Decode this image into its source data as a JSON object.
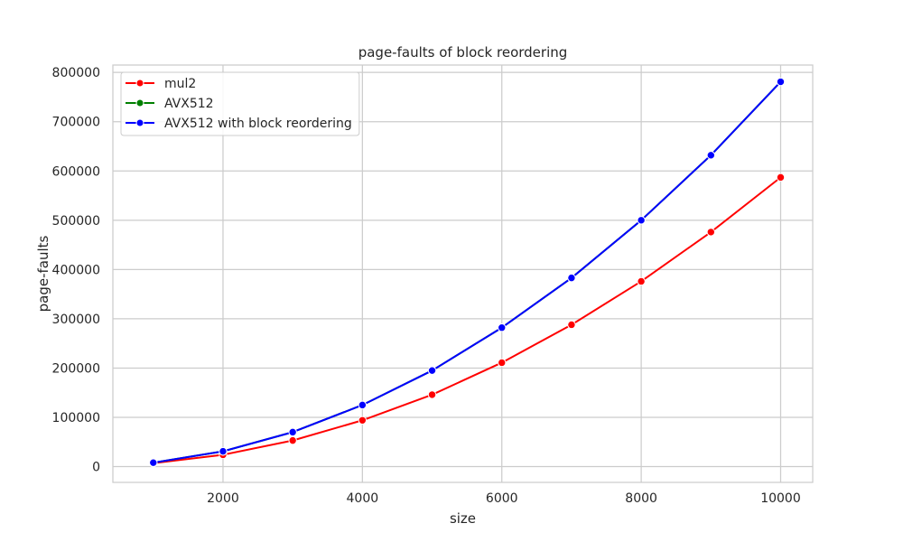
{
  "chart_data": {
    "type": "line",
    "title": "page-faults of block reordering",
    "xlabel": "size",
    "ylabel": "page-faults",
    "xlim": [
      420,
      10460
    ],
    "ylim": [
      -32000,
      815000
    ],
    "xticks": [
      2000,
      4000,
      6000,
      8000,
      10000
    ],
    "xtick_labels": [
      "2000",
      "4000",
      "6000",
      "8000",
      "10000"
    ],
    "yticks": [
      0,
      100000,
      200000,
      300000,
      400000,
      500000,
      600000,
      700000,
      800000
    ],
    "ytick_labels": [
      "0",
      "100000",
      "200000",
      "300000",
      "400000",
      "500000",
      "600000",
      "700000",
      "800000"
    ],
    "grid": true,
    "legend_position": "top-left",
    "x": [
      1000,
      2000,
      3000,
      4000,
      5000,
      6000,
      7000,
      8000,
      9000,
      10000
    ],
    "series": [
      {
        "name": "mul2",
        "color": "#ff0000",
        "values": [
          7000,
          24000,
          53000,
          94000,
          146000,
          211000,
          288000,
          376000,
          476000,
          587000
        ]
      },
      {
        "name": "AVX512",
        "color": "#008000",
        "values": [
          8000,
          31000,
          70000,
          125000,
          195000,
          282000,
          383000,
          500000,
          632000,
          781000
        ]
      },
      {
        "name": "AVX512 with block reordering",
        "color": "#0000ff",
        "values": [
          8000,
          31000,
          70000,
          125000,
          195000,
          282000,
          383000,
          500000,
          632000,
          781000
        ]
      }
    ]
  }
}
